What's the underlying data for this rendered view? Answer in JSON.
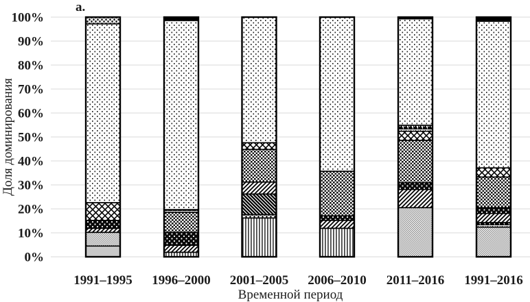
{
  "figure_label": "a.",
  "y_axis": {
    "title": "Доля доминирования",
    "tick_labels": [
      "0%",
      "10%",
      "20%",
      "30%",
      "40%",
      "50%",
      "60%",
      "70%",
      "80%",
      "90%",
      "100%"
    ]
  },
  "x_axis": {
    "title": "Временной период",
    "categories": [
      "1991–1995",
      "1996–2000",
      "2001–2005",
      "2006–2010",
      "2011–2016",
      "1991–2016"
    ]
  },
  "colors": {
    "background": "#ffffff",
    "grid": "#d9d9d9",
    "text": "#1c1c1c",
    "bar_border": "#000000",
    "solid_gray_fill": "#c8c8c8"
  },
  "chart_data": {
    "type": "bar",
    "stacked": true,
    "unit": "%",
    "ylim": [
      0,
      100
    ],
    "grid": "horizontal gridlines every 10%",
    "legend": "none visible (patterns distinguish series)",
    "categories": [
      "1991–1995",
      "1996–2000",
      "2001–2005",
      "2006–2010",
      "2011–2016",
      "1991–2016"
    ],
    "bars": [
      {
        "category": "1991–1995",
        "segments": [
          {
            "pattern": "solid-gray",
            "value": 4.5
          },
          {
            "pattern": "fine-checker",
            "value": 5.7
          },
          {
            "pattern": "diag-light",
            "value": 1.7
          },
          {
            "pattern": "black-dots",
            "value": 3.3
          },
          {
            "pattern": "diamond-lattice",
            "value": 7.4
          },
          {
            "pattern": "dots",
            "value": 74.6
          },
          {
            "pattern": "vstripes-dense",
            "value": 2.8
          }
        ]
      },
      {
        "category": "1996–2000",
        "segments": [
          {
            "pattern": "vstripes",
            "value": 1.9
          },
          {
            "pattern": "diag-light",
            "value": 2.9
          },
          {
            "pattern": "black-dots",
            "value": 5.4
          },
          {
            "pattern": "dense-checker",
            "value": 8.4
          },
          {
            "pattern": "zigzag",
            "value": 1.1
          },
          {
            "pattern": "dots",
            "value": 78.9
          },
          {
            "pattern": "black-solid",
            "value": 1.4
          }
        ]
      },
      {
        "category": "2001–2005",
        "segments": [
          {
            "pattern": "vstripes",
            "value": 16.2
          },
          {
            "pattern": "vstripes-dense",
            "value": 1.4
          },
          {
            "pattern": "diag-dark",
            "value": 8.6
          },
          {
            "pattern": "diag-light",
            "value": 5.0
          },
          {
            "pattern": "dense-checker",
            "value": 13.6
          },
          {
            "pattern": "diamond-lattice",
            "value": 2.8
          },
          {
            "pattern": "dots",
            "value": 52.4
          }
        ]
      },
      {
        "category": "2006–2010",
        "segments": [
          {
            "pattern": "vstripes",
            "value": 11.9
          },
          {
            "pattern": "diag-light",
            "value": 3.3
          },
          {
            "pattern": "black-dots",
            "value": 1.9
          },
          {
            "pattern": "dense-checker",
            "value": 18.6
          },
          {
            "pattern": "dots",
            "value": 64.3
          }
        ]
      },
      {
        "category": "2011–2016",
        "segments": [
          {
            "pattern": "fine-checker",
            "value": 20.5
          },
          {
            "pattern": "diag-light",
            "value": 7.6
          },
          {
            "pattern": "black-dots",
            "value": 2.8
          },
          {
            "pattern": "dense-checker",
            "value": 17.7
          },
          {
            "pattern": "diamond-lattice",
            "value": 3.8
          },
          {
            "pattern": "zigzag",
            "value": 2.5
          },
          {
            "pattern": "dots",
            "value": 44.4
          },
          {
            "pattern": "black-solid",
            "value": 0.7
          }
        ]
      },
      {
        "category": "1991–2016",
        "segments": [
          {
            "pattern": "fine-checker",
            "value": 12.4
          },
          {
            "pattern": "zigzag",
            "value": 1.9
          },
          {
            "pattern": "diag-light",
            "value": 3.8
          },
          {
            "pattern": "black-dots",
            "value": 2.4
          },
          {
            "pattern": "dense-checker",
            "value": 12.8
          },
          {
            "pattern": "diamond-lattice",
            "value": 3.8
          },
          {
            "pattern": "dots",
            "value": 61.2
          },
          {
            "pattern": "black-solid",
            "value": 1.7
          }
        ]
      }
    ]
  }
}
